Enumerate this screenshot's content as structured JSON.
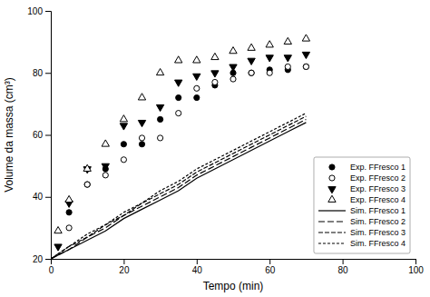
{
  "chart_data": {
    "type": "line",
    "xlabel": "Tempo (min)",
    "ylabel": "Volume da massa (cm³)",
    "xlim": [
      0,
      100
    ],
    "ylim": [
      20,
      100
    ],
    "xticks": [
      0,
      20,
      40,
      60,
      80,
      100
    ],
    "yticks": [
      20,
      40,
      60,
      80,
      100
    ],
    "grid": false,
    "legend": "lower right",
    "color": "black",
    "series": [
      {
        "name": "Exp. FFresco 1",
        "type": "scatter",
        "marker": "circle",
        "x": [
          5,
          10,
          15,
          20,
          25,
          30,
          35,
          40,
          45,
          50,
          55,
          60,
          65,
          70
        ],
        "values": [
          35,
          44,
          49,
          57,
          57,
          65,
          72,
          72,
          76,
          80,
          80,
          81,
          81,
          82
        ]
      },
      {
        "name": "Exp. FFresco 2",
        "type": "scatter",
        "marker": "circle-open",
        "x": [
          5,
          10,
          15,
          20,
          25,
          30,
          35,
          40,
          45,
          50,
          55,
          60,
          65,
          70
        ],
        "values": [
          30,
          44,
          47,
          52,
          59,
          59,
          67,
          75,
          77,
          78,
          80,
          80,
          82,
          82
        ]
      },
      {
        "name": "Exp. FFresco 3",
        "type": "scatter",
        "marker": "triangle-down",
        "x": [
          2,
          5,
          10,
          15,
          20,
          25,
          30,
          35,
          40,
          45,
          50,
          55,
          60,
          65,
          70
        ],
        "values": [
          24,
          38,
          49,
          50,
          63,
          64,
          69,
          77,
          79,
          80,
          82,
          84,
          85,
          85,
          86
        ]
      },
      {
        "name": "Exp. FFresco 4",
        "type": "scatter",
        "marker": "triangle-up-open",
        "x": [
          2,
          5,
          10,
          15,
          20,
          25,
          30,
          35,
          40,
          45,
          50,
          55,
          60,
          65,
          70
        ],
        "values": [
          29,
          39,
          49,
          57,
          65,
          72,
          80,
          84,
          84,
          85,
          87,
          88,
          89,
          90,
          91
        ]
      },
      {
        "name": "Sim. FFresco 1",
        "type": "line",
        "line_style": "solid",
        "x": [
          0,
          5,
          10,
          15,
          20,
          25,
          30,
          35,
          40,
          45,
          50,
          55,
          60,
          65,
          70
        ],
        "values": [
          20,
          23,
          26,
          29,
          33,
          36,
          39,
          42,
          46,
          49,
          52,
          55,
          58,
          61,
          64
        ]
      },
      {
        "name": "Sim. FFresco 2",
        "type": "line",
        "line_style": "long-dash",
        "x": [
          0,
          5,
          10,
          15,
          20,
          25,
          30,
          35,
          40,
          45,
          50,
          55,
          60,
          65,
          70
        ],
        "values": [
          20,
          23,
          27,
          30,
          34,
          37,
          40,
          43,
          47,
          50,
          53,
          56,
          59,
          62,
          65
        ]
      },
      {
        "name": "Sim. FFresco 3",
        "type": "line",
        "line_style": "medium-dash",
        "x": [
          0,
          5,
          10,
          15,
          20,
          25,
          30,
          35,
          40,
          45,
          50,
          55,
          60,
          65,
          70
        ],
        "values": [
          20,
          24,
          27,
          31,
          34,
          38,
          41,
          44,
          48,
          51,
          54,
          57,
          60,
          63,
          66
        ]
      },
      {
        "name": "Sim. FFresco 4",
        "type": "line",
        "line_style": "short-dash",
        "x": [
          0,
          5,
          10,
          15,
          20,
          25,
          30,
          35,
          40,
          45,
          50,
          55,
          60,
          65,
          70
        ],
        "values": [
          20,
          24,
          28,
          31,
          35,
          38,
          42,
          45,
          49,
          52,
          55,
          58,
          61,
          64,
          67
        ]
      }
    ]
  }
}
